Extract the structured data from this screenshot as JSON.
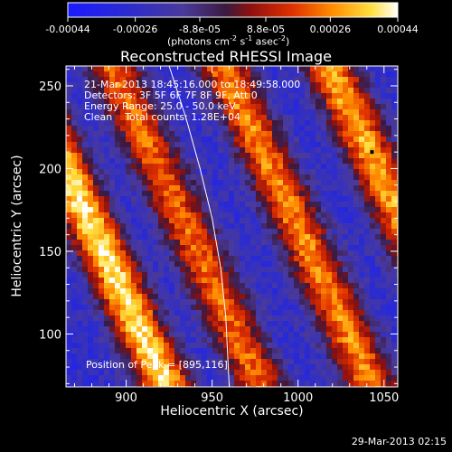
{
  "colorbar": {
    "ticks": [
      "-0.00044",
      "-0.00026",
      "-8.8e-05",
      "8.8e-05",
      "0.00026",
      "0.00044"
    ],
    "min": -0.00044,
    "max": 0.00044,
    "units_label": "(photons cm",
    "units_sup1": "-2",
    "units_mid1": " s",
    "units_sup2": "-1",
    "units_mid2": " asec",
    "units_sup3": "-2",
    "units_end": ")"
  },
  "chart_data": {
    "type": "heatmap",
    "title": "Reconstructed RHESSI Image",
    "xlabel": "Heliocentric X (arcsec)",
    "ylabel": "Heliocentric Y (arcsec)",
    "xlim": [
      865,
      1058
    ],
    "ylim": [
      68,
      262
    ],
    "x_ticks": [
      900,
      950,
      1000,
      1050
    ],
    "y_ticks": [
      100,
      150,
      200,
      250
    ],
    "annotations": [
      "21-Mar-2013 18:45:16.000 to 18:49:58.000",
      "Detectors: 3F 5F 6F 7F 8F 9F, Att 0",
      "Energy Range: 25.0 - 50.0 keV",
      "Clean    Total counts: 1.28E+04"
    ],
    "peak_label": "Position of Peak = [895,116]",
    "peak": [
      895,
      116
    ],
    "marker": [
      1043,
      210
    ],
    "limb_curve": [
      [
        925,
        262
      ],
      [
        935,
        230
      ],
      [
        943,
        200
      ],
      [
        950,
        170
      ],
      [
        955,
        140
      ],
      [
        958,
        110
      ],
      [
        960,
        68
      ]
    ],
    "stripes": [
      {
        "center_at_y165": 880,
        "intensity": 0.95
      },
      {
        "center_at_y165": 935,
        "intensity": 0.75
      },
      {
        "center_at_y165": 1000,
        "intensity": 0.8
      },
      {
        "center_at_y165": 1062,
        "intensity": 0.85
      }
    ],
    "stripe_slope_x_per_y": 0.45
  },
  "footer": {
    "date": "29-Mar-2013 02:15"
  }
}
